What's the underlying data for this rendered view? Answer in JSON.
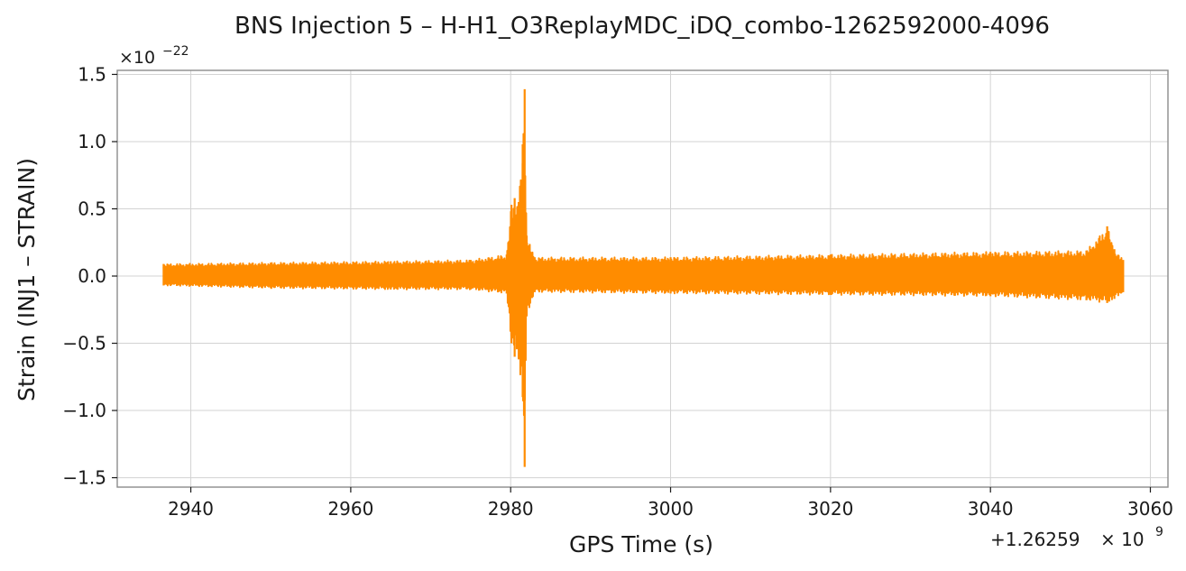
{
  "chart_data": {
    "type": "line",
    "title": "BNS Injection 5 – H-H1_O3ReplayMDC_iDQ_combo-1262592000-4096",
    "xlabel": "GPS Time (s)",
    "ylabel": "Strain (INJ1 – STRAIN)",
    "x_offset_label": "+1.26259",
    "x_offset_exp_base": "× 10",
    "x_offset_exp": "9",
    "y_multiplier_base": "×10",
    "y_multiplier_exp": "−22",
    "xlim": [
      2930.8,
      3062.2
    ],
    "ylim": [
      -1.57,
      1.53
    ],
    "grid": true,
    "x_ticks": [
      {
        "value": 2940,
        "label": "2940"
      },
      {
        "value": 2960,
        "label": "2960"
      },
      {
        "value": 2980,
        "label": "2980"
      },
      {
        "value": 3000,
        "label": "3000"
      },
      {
        "value": 3020,
        "label": "3020"
      },
      {
        "value": 3040,
        "label": "3040"
      },
      {
        "value": 3060,
        "label": "3060"
      }
    ],
    "y_ticks": [
      {
        "value": 1.5,
        "label": "1.5"
      },
      {
        "value": 1.0,
        "label": "1.0"
      },
      {
        "value": 0.5,
        "label": "0.5"
      },
      {
        "value": 0.0,
        "label": "0.0"
      },
      {
        "value": -0.5,
        "label": "−0.5"
      },
      {
        "value": -1.0,
        "label": "−1.0"
      },
      {
        "value": -1.5,
        "label": "−1.5"
      }
    ],
    "series": [
      {
        "color": "#ff8c00",
        "x_range": [
          2936.6,
          3056.6
        ],
        "envelope": [
          {
            "x": 2936.6,
            "min": -0.07,
            "max": 0.09
          },
          {
            "x": 2950,
            "min": -0.09,
            "max": 0.1
          },
          {
            "x": 2965,
            "min": -0.1,
            "max": 0.11
          },
          {
            "x": 2975,
            "min": -0.1,
            "max": 0.12
          },
          {
            "x": 2979.5,
            "min": -0.13,
            "max": 0.16
          },
          {
            "x": 2980.1,
            "min": -0.5,
            "max": 0.53
          },
          {
            "x": 2980.5,
            "min": -0.6,
            "max": 0.58
          },
          {
            "x": 2981.0,
            "min": -0.62,
            "max": 0.55
          },
          {
            "x": 2981.5,
            "min": -0.9,
            "max": 0.98
          },
          {
            "x": 2981.75,
            "min": -1.42,
            "max": 1.39
          },
          {
            "x": 2982.0,
            "min": -0.3,
            "max": 0.3
          },
          {
            "x": 2983,
            "min": -0.12,
            "max": 0.14
          },
          {
            "x": 3000,
            "min": -0.13,
            "max": 0.14
          },
          {
            "x": 3020,
            "min": -0.14,
            "max": 0.16
          },
          {
            "x": 3040,
            "min": -0.15,
            "max": 0.18
          },
          {
            "x": 3052,
            "min": -0.18,
            "max": 0.19
          },
          {
            "x": 3054.6,
            "min": -0.2,
            "max": 0.37
          },
          {
            "x": 3055.5,
            "min": -0.17,
            "max": 0.2
          },
          {
            "x": 3056.6,
            "min": -0.12,
            "max": 0.12
          }
        ]
      }
    ]
  }
}
